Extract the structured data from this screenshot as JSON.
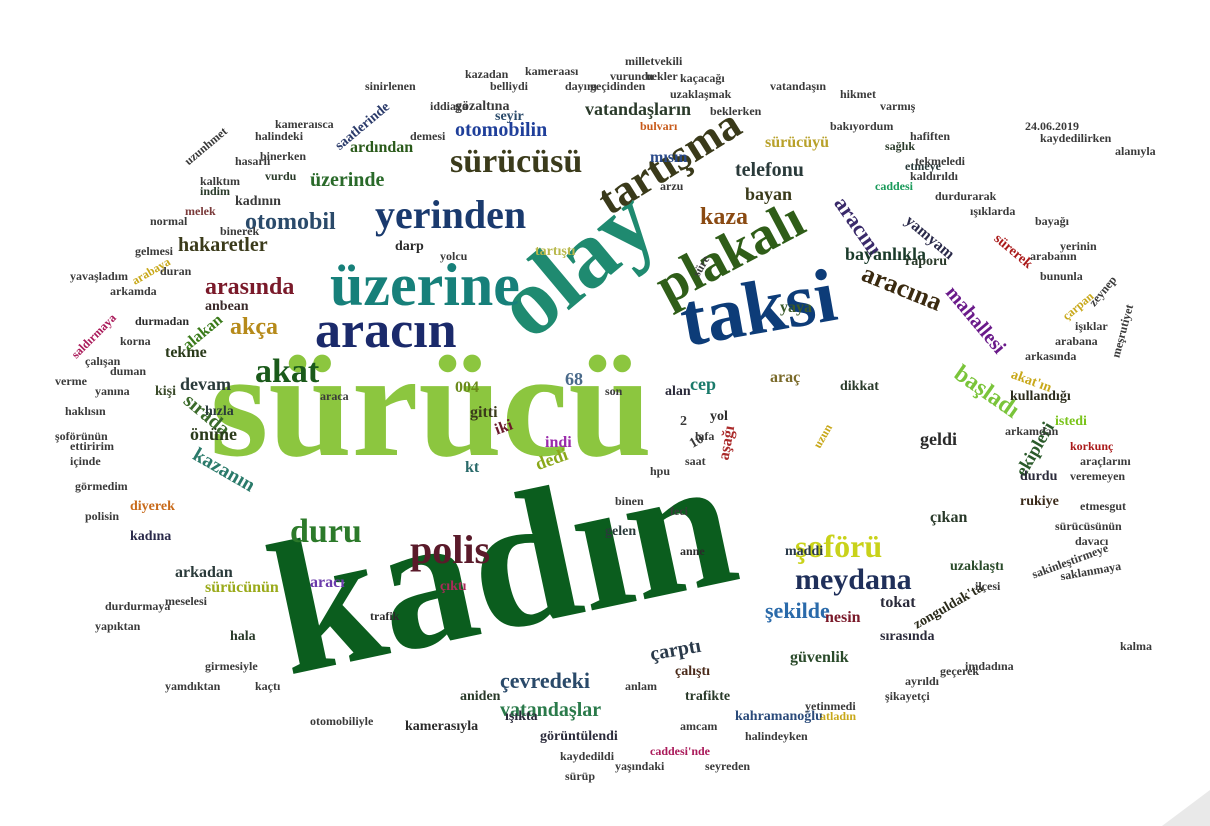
{
  "title": "",
  "words": [
    {
      "text": "kadın",
      "color": "#0b5d1e"
    },
    {
      "text": "sürücü",
      "color": "#8cc63f"
    },
    {
      "text": "olay",
      "color": "#1f8a70"
    },
    {
      "text": "taksi",
      "color": "#0d3c78"
    },
    {
      "text": "üzerine",
      "color": "#17807a"
    },
    {
      "text": "aracın",
      "color": "#1b2a6b"
    },
    {
      "text": "plakalı",
      "color": "#2f5d18"
    },
    {
      "text": "tartışma",
      "color": "#3a3a1a"
    },
    {
      "text": "yerinden",
      "color": "#1a3a6e"
    },
    {
      "text": "sürücüsü",
      "color": "#3b3b1b"
    },
    {
      "text": "polis",
      "color": "#5a1a2a"
    },
    {
      "text": "duru",
      "color": "#2c7a2a"
    },
    {
      "text": "şoförü",
      "color": "#c9d21a"
    },
    {
      "text": "meydana",
      "color": "#1f2f5a"
    },
    {
      "text": "akat",
      "color": "#1a5a1a"
    },
    {
      "text": "aracına",
      "color": "#3a2a10"
    },
    {
      "text": "kaza",
      "color": "#8a4a12"
    },
    {
      "text": "otomobil",
      "color": "#2a4a6a"
    },
    {
      "text": "arasında",
      "color": "#7a1a2a"
    },
    {
      "text": "otomobilin",
      "color": "#1f3f9a"
    },
    {
      "text": "üzerinde",
      "color": "#2a6a2a"
    },
    {
      "text": "vatandaşların",
      "color": "#2a3a2a"
    },
    {
      "text": "hakaretler",
      "color": "#3a3a1a"
    },
    {
      "text": "akça",
      "color": "#b68a1a"
    },
    {
      "text": "aracını",
      "color": "#3a2a6a"
    },
    {
      "text": "başladı",
      "color": "#7ac43a"
    },
    {
      "text": "mahallesi",
      "color": "#6a1a8a"
    },
    {
      "text": "ekipleri",
      "color": "#2a5a2a"
    },
    {
      "text": "şekilde",
      "color": "#2a6aaa"
    },
    {
      "text": "çevredeki",
      "color": "#2a4a6a"
    },
    {
      "text": "vatandaşlar",
      "color": "#2a7a4a"
    },
    {
      "text": "çarptı",
      "color": "#2a3a4a"
    },
    {
      "text": "kazanın",
      "color": "#2a7a6a"
    },
    {
      "text": "sırada",
      "color": "#3a6a2a"
    },
    {
      "text": "devam",
      "color": "#2a3a3a"
    },
    {
      "text": "telefonu",
      "color": "#2a3a3a"
    },
    {
      "text": "bayan",
      "color": "#3a3a1a"
    },
    {
      "text": "bayanlıkla",
      "color": "#1a3a2a"
    },
    {
      "text": "yamyam",
      "color": "#2a2a4a"
    },
    {
      "text": "sürücüyü",
      "color": "#b8a12a"
    },
    {
      "text": "mısın",
      "color": "#2a4a8a"
    },
    {
      "text": "ardından",
      "color": "#2a5a1a"
    },
    {
      "text": "gözaltına",
      "color": "#3a3a3a"
    },
    {
      "text": "tekme",
      "color": "#2a3a1a"
    },
    {
      "text": "alakan",
      "color": "#3a7a1a"
    },
    {
      "text": "anbean",
      "color": "#3a2a2a"
    },
    {
      "text": "yaya",
      "color": "#3a5a2a"
    },
    {
      "text": "araç",
      "color": "#7a6a2a"
    },
    {
      "text": "cep",
      "color": "#1a7a6a"
    },
    {
      "text": "alan",
      "color": "#2a2a3a"
    },
    {
      "text": "gitti",
      "color": "#3a3a1a"
    },
    {
      "text": "004",
      "color": "#6a8a1a"
    },
    {
      "text": "68",
      "color": "#4a6a8a"
    },
    {
      "text": "kişi",
      "color": "#3a4a2a"
    },
    {
      "text": "hızla",
      "color": "#2a3a3a"
    },
    {
      "text": "önüne",
      "color": "#2a3a1a"
    },
    {
      "text": "dedi",
      "color": "#8aa81a"
    },
    {
      "text": "indi",
      "color": "#9a2aaa"
    },
    {
      "text": "iki",
      "color": "#6a1a2a"
    },
    {
      "text": "kt",
      "color": "#2a6a6a"
    },
    {
      "text": "aşağı",
      "color": "#aa2a2a"
    },
    {
      "text": "geldi",
      "color": "#2a2a2a"
    },
    {
      "text": "durdu",
      "color": "#2a2a3a"
    },
    {
      "text": "rukiye",
      "color": "#3a2a1a"
    },
    {
      "text": "çıkan",
      "color": "#2a3a2a"
    },
    {
      "text": "uzaklaştı",
      "color": "#2a4a2a"
    },
    {
      "text": "nesin",
      "color": "#7a1a2a"
    },
    {
      "text": "tokat",
      "color": "#2a2a3a"
    },
    {
      "text": "maddi",
      "color": "#2a3a4a"
    },
    {
      "text": "gelen",
      "color": "#2a3a3a"
    },
    {
      "text": "arkadan",
      "color": "#2a3a3a"
    },
    {
      "text": "aracı",
      "color": "#6a3aaa"
    },
    {
      "text": "diyerek",
      "color": "#c86a1a"
    },
    {
      "text": "kadına",
      "color": "#2a2a4a"
    },
    {
      "text": "sürücünün",
      "color": "#9aaa1a"
    },
    {
      "text": "hala",
      "color": "#2a3a2a"
    },
    {
      "text": "güvenlik",
      "color": "#2a4a2a"
    },
    {
      "text": "trafikte",
      "color": "#2a3a2a"
    },
    {
      "text": "çalıştı",
      "color": "#4a2a1a"
    },
    {
      "text": "ışıkta",
      "color": "#2a2a3a"
    },
    {
      "text": "aniden",
      "color": "#2a3a2a"
    },
    {
      "text": "kamerasıyla",
      "color": "#2a2a2a"
    },
    {
      "text": "kahramanoğlu",
      "color": "#2a4a7a"
    },
    {
      "text": "görüntülendi",
      "color": "#2a2a3a"
    },
    {
      "text": "sırasında",
      "color": "#2a2a3a"
    },
    {
      "text": "zonguldak'ta",
      "color": "#2a2a1a"
    },
    {
      "text": "kullandığı",
      "color": "#2a2a1a"
    },
    {
      "text": "akat'ın",
      "color": "#c8a81a"
    },
    {
      "text": "raporu",
      "color": "#2a3a2a"
    },
    {
      "text": "sürerek",
      "color": "#aa1a1a"
    },
    {
      "text": "darp",
      "color": "#2a2a2a"
    },
    {
      "text": "tartıştı",
      "color": "#b8b84a"
    },
    {
      "text": "dikkat",
      "color": "#2a3a2a"
    },
    {
      "text": "seyir",
      "color": "#2a4a6a"
    },
    {
      "text": "saatlerinde",
      "color": "#2a3a6a"
    },
    {
      "text": "kadının",
      "color": "#3a3a3a"
    },
    {
      "text": "vurdu",
      "color": "#2a3a2a"
    },
    {
      "text": "indim",
      "color": "#2a3a2a"
    },
    {
      "text": "melek",
      "color": "#7a3a3a"
    },
    {
      "text": "durmadan",
      "color": "#2a2a2a"
    },
    {
      "text": "trafik",
      "color": "#2a2a2a"
    },
    {
      "text": "çıktı",
      "color": "#aa2a5a"
    },
    {
      "text": "anne",
      "color": "#2a2a2a"
    },
    {
      "text": "yol",
      "color": "#2a2a2a"
    },
    {
      "text": "uzun",
      "color": "#c8a81a"
    },
    {
      "text": "istedi",
      "color": "#7ac41a"
    },
    {
      "text": "korkunç",
      "color": "#aa1a1a"
    },
    {
      "text": "veremeyen",
      "color": "#3a3a3a"
    },
    {
      "text": "araçlarını",
      "color": "#3a3a3a"
    },
    {
      "text": "etmeye",
      "color": "#2a3a3a"
    },
    {
      "text": "sağlık",
      "color": "#2a3a2a"
    },
    {
      "text": "caddesi",
      "color": "#1a9a5a"
    },
    {
      "text": "bulvarı",
      "color": "#c85a1a"
    },
    {
      "text": "geçidinden",
      "color": "#3a3a3a"
    },
    {
      "text": "uzaklaşmak",
      "color": "#3a3a3a"
    },
    {
      "text": "belliydi",
      "color": "#3a3a3a"
    },
    {
      "text": "kazadan",
      "color": "#3a3a3a"
    },
    {
      "text": "iddiaya",
      "color": "#3a3a3a"
    },
    {
      "text": "milletvekili",
      "color": "#3a3a3a"
    },
    {
      "text": "bekler",
      "color": "#3a3a3a"
    },
    {
      "text": "demesi",
      "color": "#3a3a3a"
    },
    {
      "text": "hikmet",
      "color": "#3a3a3a"
    },
    {
      "text": "varmış",
      "color": "#3a3a3a"
    },
    {
      "text": "hafiften",
      "color": "#3a3a3a"
    },
    {
      "text": "tekmeledi",
      "color": "#3a3a3a"
    },
    {
      "text": "bayağı",
      "color": "#3a3a3a"
    },
    {
      "text": "yerinin",
      "color": "#3a3a3a"
    },
    {
      "text": "arabanın",
      "color": "#3a3a3a"
    },
    {
      "text": "bununla",
      "color": "#3a3a3a"
    },
    {
      "text": "çarpan",
      "color": "#c8a81a"
    },
    {
      "text": "arabana",
      "color": "#3a3a3a"
    },
    {
      "text": "arkasında",
      "color": "#3a3a3a"
    },
    {
      "text": "arkamdan",
      "color": "#3a3a3a"
    },
    {
      "text": "etmesgut",
      "color": "#3a3a3a"
    },
    {
      "text": "sürücüsünün",
      "color": "#3a3a3a"
    },
    {
      "text": "davacı",
      "color": "#3a3a3a"
    },
    {
      "text": "imdadına",
      "color": "#3a3a3a"
    },
    {
      "text": "ayrıldı",
      "color": "#3a3a3a"
    },
    {
      "text": "yetinmedi",
      "color": "#3a3a3a"
    },
    {
      "text": "halindeyken",
      "color": "#3a3a3a"
    },
    {
      "text": "kaydedildi",
      "color": "#3a3a3a"
    },
    {
      "text": "yaşındaki",
      "color": "#3a3a3a"
    },
    {
      "text": "sürüp",
      "color": "#3a3a3a"
    },
    {
      "text": "amcam",
      "color": "#3a3a3a"
    },
    {
      "text": "atladın",
      "color": "#c8a81a"
    },
    {
      "text": "caddesi'nde",
      "color": "#aa1a5a"
    },
    {
      "text": "seyreden",
      "color": "#3a3a3a"
    },
    {
      "text": "şikayetçi",
      "color": "#3a3a3a"
    },
    {
      "text": "otomobiliyle",
      "color": "#3a3a3a"
    },
    {
      "text": "ilçesi",
      "color": "#3a3a3a"
    },
    {
      "text": "durdurmaya",
      "color": "#3a3a3a"
    },
    {
      "text": "yapıktan",
      "color": "#3a3a3a"
    },
    {
      "text": "meselesi",
      "color": "#3a3a3a"
    },
    {
      "text": "girmesiyle",
      "color": "#3a3a3a"
    },
    {
      "text": "yamdıktan",
      "color": "#3a3a3a"
    },
    {
      "text": "kaçtı",
      "color": "#3a3a3a"
    },
    {
      "text": "korna",
      "color": "#3a3a3a"
    },
    {
      "text": "duman",
      "color": "#3a3a3a"
    },
    {
      "text": "çalışan",
      "color": "#3a3a3a"
    },
    {
      "text": "yanına",
      "color": "#3a3a3a"
    },
    {
      "text": "verme",
      "color": "#3a3a3a"
    },
    {
      "text": "haklısın",
      "color": "#3a3a3a"
    },
    {
      "text": "şoförünün",
      "color": "#3a3a3a"
    },
    {
      "text": "ettiririm",
      "color": "#3a3a3a"
    },
    {
      "text": "içinde",
      "color": "#3a3a3a"
    },
    {
      "text": "görmedim",
      "color": "#3a3a3a"
    },
    {
      "text": "polisin",
      "color": "#3a3a3a"
    },
    {
      "text": "yavaşladım",
      "color": "#3a3a3a"
    },
    {
      "text": "gelmesi",
      "color": "#3a3a3a"
    },
    {
      "text": "arabaya",
      "color": "#c8a81a"
    },
    {
      "text": "arkamda",
      "color": "#3a3a3a"
    },
    {
      "text": "duran",
      "color": "#3a3a3a"
    },
    {
      "text": "normal",
      "color": "#3a3a3a"
    },
    {
      "text": "binerek",
      "color": "#3a3a3a"
    },
    {
      "text": "kalktım",
      "color": "#3a3a3a"
    },
    {
      "text": "hasarlı",
      "color": "#3a3a3a"
    },
    {
      "text": "binerken",
      "color": "#3a3a3a"
    },
    {
      "text": "halindeki",
      "color": "#3a3a3a"
    },
    {
      "text": "kameraısca",
      "color": "#3a3a3a"
    },
    {
      "text": "sinirlenen",
      "color": "#3a3a3a"
    },
    {
      "text": "kameraası",
      "color": "#3a3a3a"
    },
    {
      "text": "dayım",
      "color": "#3a3a3a"
    },
    {
      "text": "vuruncu",
      "color": "#3a3a3a"
    },
    {
      "text": "kaçacağı",
      "color": "#3a3a3a"
    },
    {
      "text": "beklerken",
      "color": "#3a3a3a"
    },
    {
      "text": "vatandaşın",
      "color": "#3a3a3a"
    },
    {
      "text": "bakıyordum",
      "color": "#3a3a3a"
    },
    {
      "text": "kaldırıldı",
      "color": "#3a3a3a"
    },
    {
      "text": "durdurarak",
      "color": "#3a3a3a"
    },
    {
      "text": "ışıklarda",
      "color": "#3a3a3a"
    },
    {
      "text": "arzu",
      "color": "#3a3a3a"
    },
    {
      "text": "yolcu",
      "color": "#3a3a3a"
    },
    {
      "text": "son",
      "color": "#3a3a3a"
    },
    {
      "text": "lafa",
      "color": "#3a3a3a"
    },
    {
      "text": "saat",
      "color": "#3a3a3a"
    },
    {
      "text": "hpu",
      "color": "#3a3a3a"
    },
    {
      "text": "feci",
      "color": "#3a3a3a"
    },
    {
      "text": "binen",
      "color": "#3a3a3a"
    },
    {
      "text": "2",
      "color": "#3a3a3a"
    },
    {
      "text": "10",
      "color": "#3a3a3a"
    },
    {
      "text": "süre",
      "color": "#3a3a3a"
    },
    {
      "text": "araca",
      "color": "#3a3a3a"
    },
    {
      "text": "anlam",
      "color": "#3a3a3a"
    },
    {
      "text": "geçerek",
      "color": "#3a3a3a"
    },
    {
      "text": "zeynep",
      "color": "#3a3a3a"
    },
    {
      "text": "meşrutiyet",
      "color": "#3a3a3a"
    },
    {
      "text": "işıklar",
      "color": "#3a3a3a"
    },
    {
      "text": "saklanmaya",
      "color": "#3a3a3a"
    },
    {
      "text": "kalma",
      "color": "#3a3a3a"
    },
    {
      "text": "saldırmaya",
      "color": "#aa1a5a"
    },
    {
      "text": "uzunhmet",
      "color": "#3a3a3a"
    },
    {
      "text": "alanıyla",
      "color": "#3a3a3a"
    },
    {
      "text": "sakinleştirmeye",
      "color": "#3a3a3a"
    },
    {
      "text": "24.06.2019",
      "color": "#3a3a3a"
    },
    {
      "text": "kaydedilirken",
      "color": "#3a3a3a"
    }
  ]
}
